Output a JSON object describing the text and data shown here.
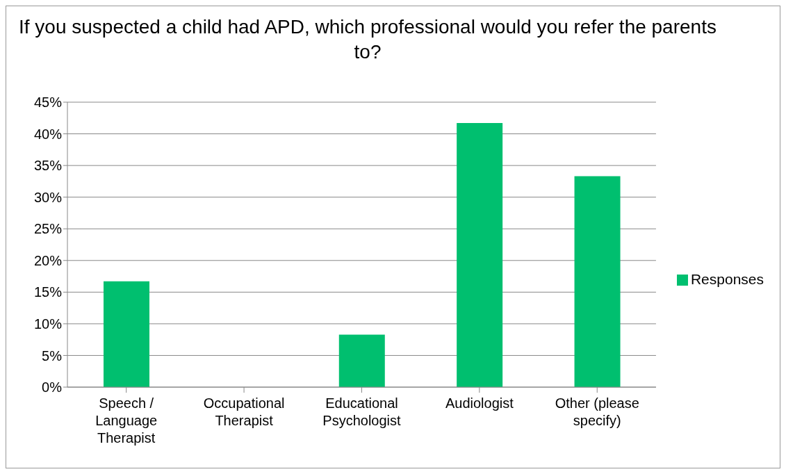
{
  "chart_data": {
    "type": "bar",
    "title": "If you suspected a child had APD, which professional would you refer the parents to?",
    "categories": [
      "Speech / Language Therapist",
      "Occupational Therapist",
      "Educational Psychologist",
      "Audiologist",
      "Other (please specify)"
    ],
    "series": [
      {
        "name": "Responses",
        "color": "#00bf6f",
        "values": [
          16.7,
          0,
          8.3,
          41.7,
          33.3
        ]
      }
    ],
    "ylim": [
      0,
      45
    ],
    "yticks": [
      {
        "value": 0,
        "label": "0%"
      },
      {
        "value": 5,
        "label": "5%"
      },
      {
        "value": 10,
        "label": "10%"
      },
      {
        "value": 15,
        "label": "15%"
      },
      {
        "value": 20,
        "label": "20%"
      },
      {
        "value": 25,
        "label": "25%"
      },
      {
        "value": 30,
        "label": "30%"
      },
      {
        "value": 35,
        "label": "35%"
      },
      {
        "value": 40,
        "label": "40%"
      },
      {
        "value": 45,
        "label": "45%"
      }
    ],
    "grid": "y",
    "legend": "right"
  }
}
